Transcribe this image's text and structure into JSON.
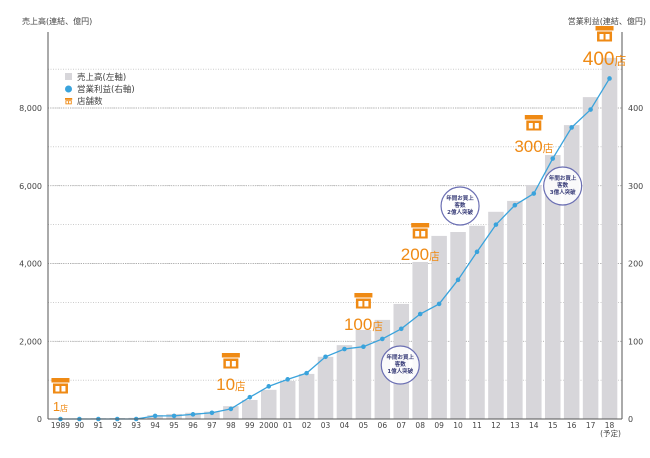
{
  "chart_data": {
    "type": "bar+line",
    "title": "",
    "left_axis_title": "売上高(連結、億円)",
    "right_axis_title": "営業利益(連結、億円)",
    "categories": [
      "1989",
      "90",
      "91",
      "92",
      "93",
      "94",
      "95",
      "96",
      "97",
      "98",
      "99",
      "2000",
      "01",
      "02",
      "03",
      "04",
      "05",
      "06",
      "07",
      "08",
      "09",
      "10",
      "11",
      "12",
      "13",
      "14",
      "15",
      "16",
      "17",
      "18"
    ],
    "category_sublabels": {
      "18": "(予定)"
    },
    "left_ylim": [
      0,
      8000
    ],
    "left_ticks": [
      0,
      2000,
      4000,
      6000,
      8000
    ],
    "left_tick_labels": [
      "0",
      "2,000",
      "4,000",
      "6,000",
      "8,000"
    ],
    "right_ylim": [
      0,
      400
    ],
    "right_ticks": [
      0,
      100,
      200,
      300,
      400
    ],
    "right_tick_labels": [
      "0",
      "100",
      "200",
      "300",
      "400"
    ],
    "grid": true,
    "legend_position": "top-left",
    "series": [
      {
        "name": "売上高(左軸)",
        "type": "bar",
        "axis": "left",
        "color": "#d7d6da",
        "values": [
          10,
          15,
          20,
          25,
          30,
          100,
          130,
          160,
          190,
          330,
          490,
          750,
          980,
          1160,
          1600,
          1900,
          2290,
          2550,
          2960,
          4040,
          4710,
          4810,
          4970,
          5330,
          5610,
          6020,
          6790,
          7560,
          8280,
          9290
        ]
      },
      {
        "name": "営業利益(右軸)",
        "type": "line",
        "axis": "right",
        "color": "#3aa3dc",
        "values": [
          0,
          0,
          0,
          0,
          0,
          4,
          4,
          6,
          8,
          13,
          28,
          42,
          51,
          59,
          80,
          90,
          93,
          103,
          116,
          135,
          148,
          179,
          215,
          250,
          275,
          290,
          335,
          375,
          398,
          438
        ]
      }
    ],
    "store_legend": "店舗数",
    "store_milestones": [
      {
        "year": "1989",
        "number": "1",
        "unit": "店"
      },
      {
        "year": "98",
        "number": "10",
        "unit": "店"
      },
      {
        "year": "05",
        "number": "100",
        "unit": "店"
      },
      {
        "year": "08",
        "number": "200",
        "unit": "店"
      },
      {
        "year": "14",
        "number": "300",
        "unit": "店"
      },
      {
        "year": "18",
        "number": "400",
        "unit": "店"
      }
    ],
    "badges": [
      {
        "year": "07",
        "lines": [
          "年間お買上",
          "客数",
          "1億人突破"
        ]
      },
      {
        "year": "10",
        "lines": [
          "年間お買上",
          "客数",
          "2億人突破"
        ]
      },
      {
        "year": "16",
        "lines": [
          "年間お買上",
          "客数",
          "3億人突破"
        ]
      }
    ],
    "colors": {
      "store": "#ef8a14",
      "badge": "#6b6fb3",
      "axis": "#555555",
      "grid": "#9a9a9a"
    }
  }
}
